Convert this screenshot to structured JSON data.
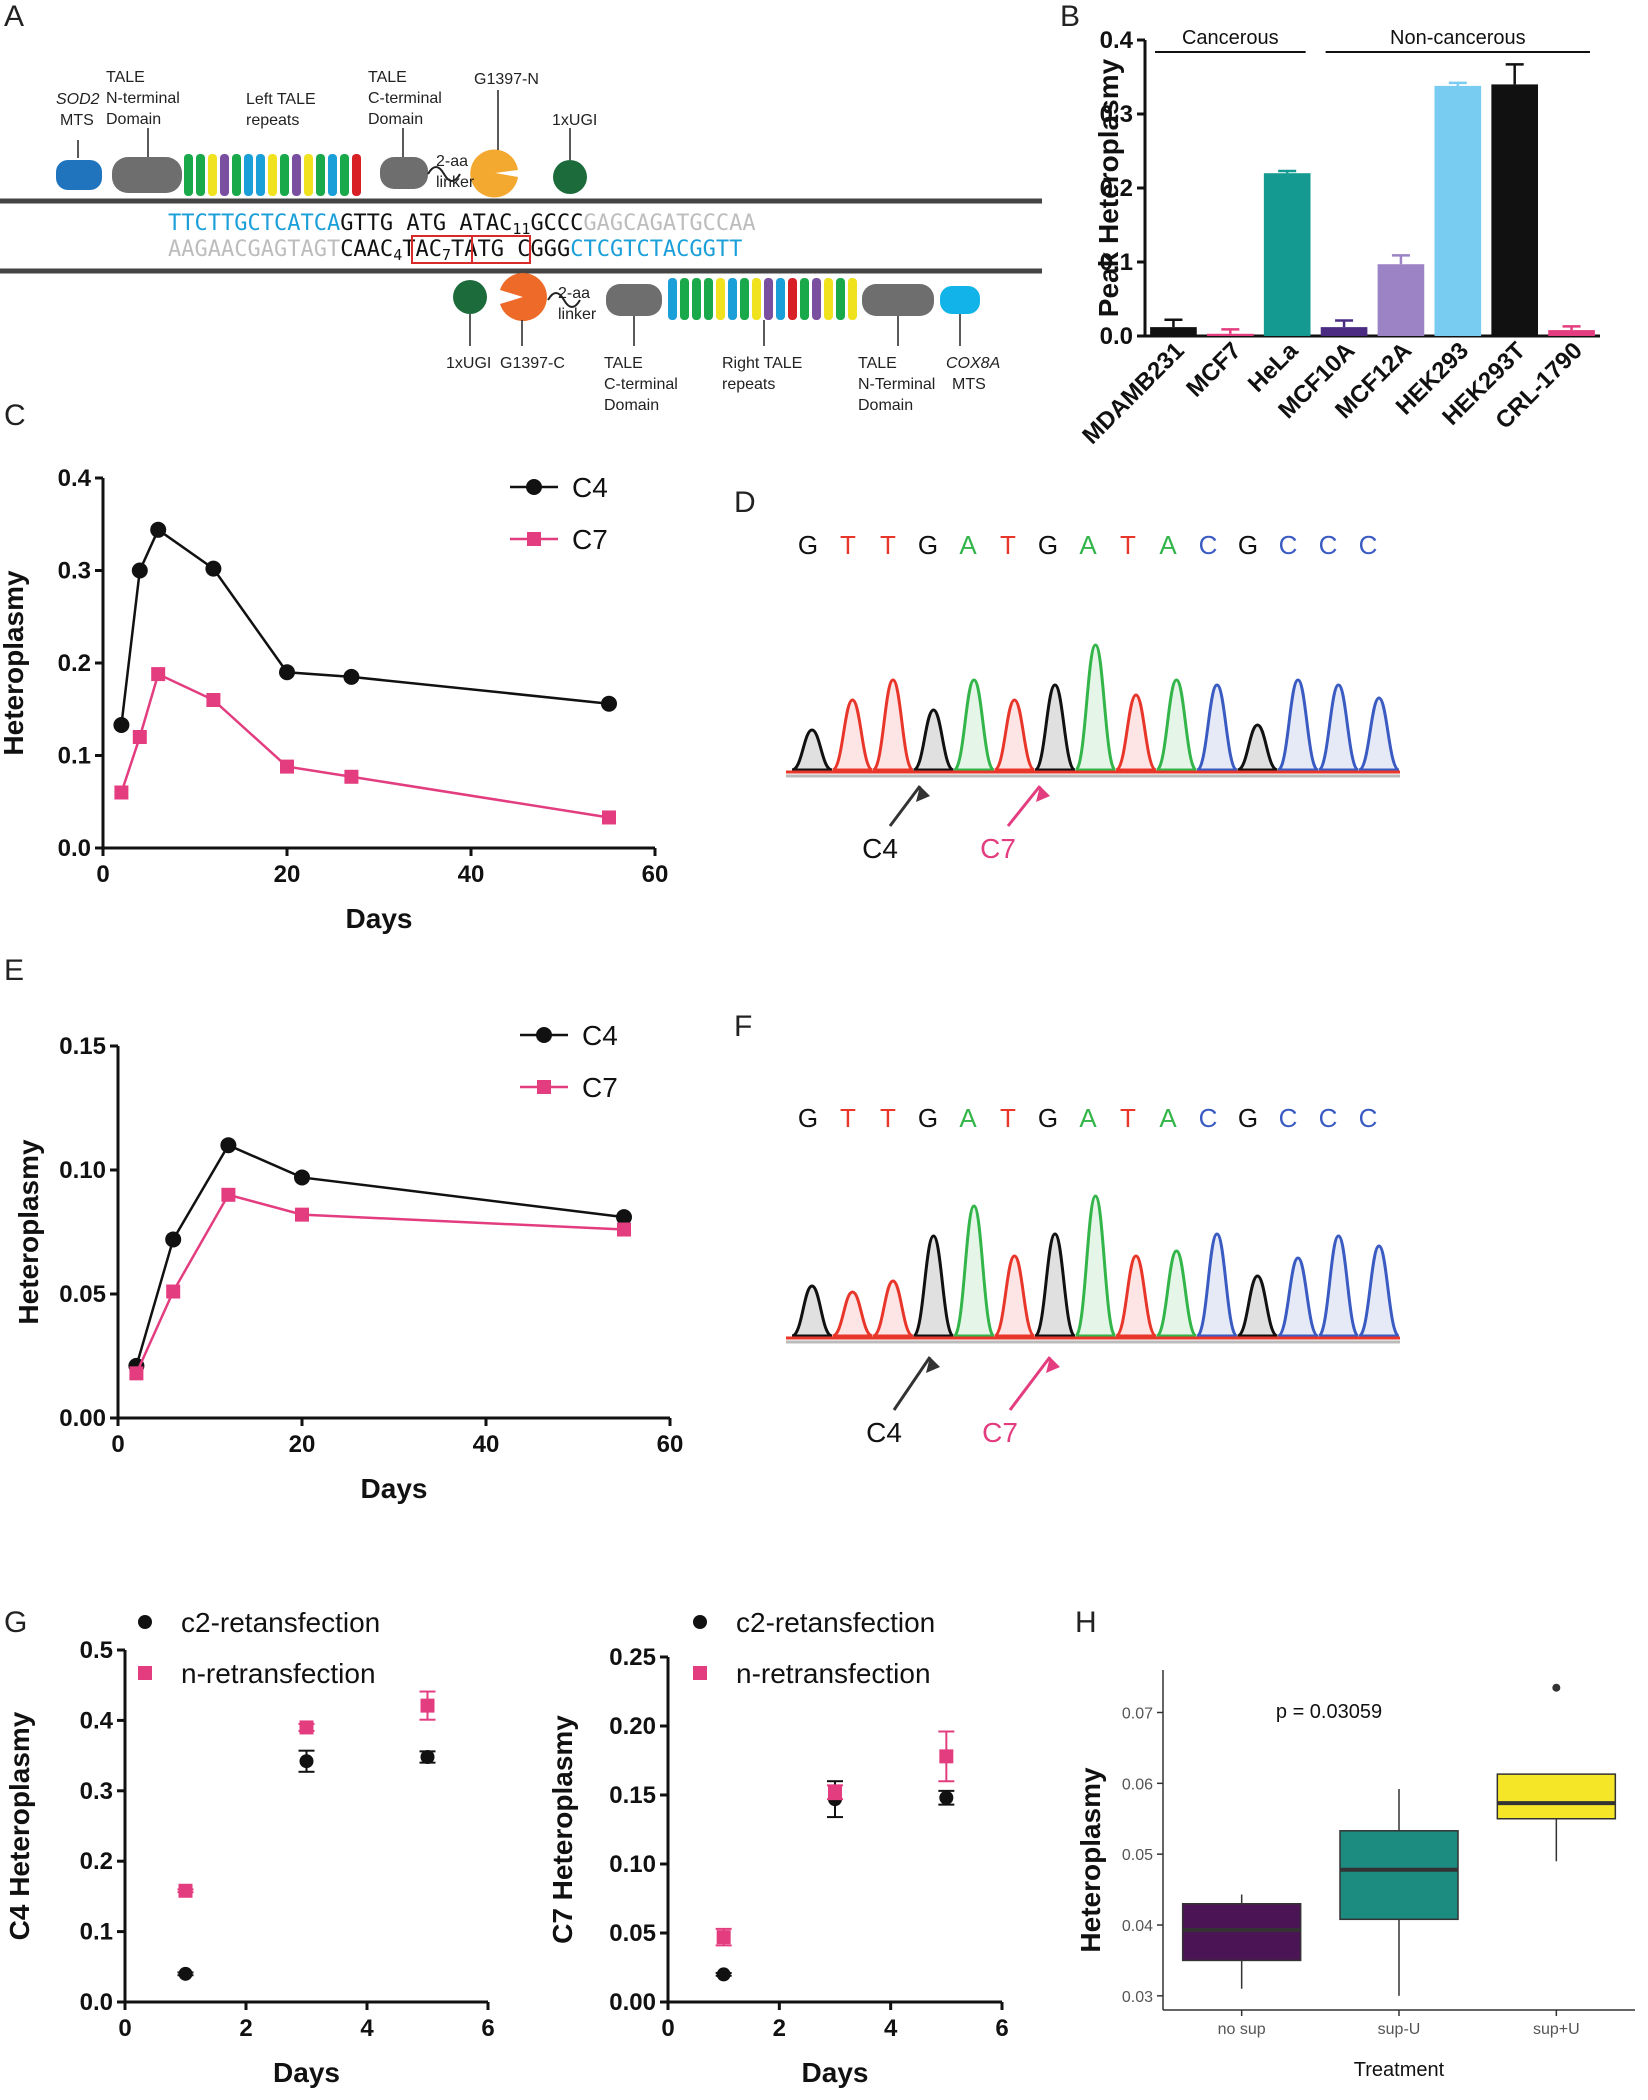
{
  "panels": {
    "A": "A",
    "B": "B",
    "C": "C",
    "D": "D",
    "E": "E",
    "F": "F",
    "G": "G",
    "H": "H"
  },
  "colors": {
    "black": "#111111",
    "pink": "#e33d80",
    "blue": "#1b9fd8",
    "grey": "#bbbbbb",
    "teal": "#149a91",
    "purple": "#4b2c82",
    "lavender": "#9b83c6",
    "sky": "#78ccf2",
    "yellow": "#f4e623",
    "orange": "#f3a82f",
    "red_orange": "#ee6a28",
    "green_dot": "#1b6b3b",
    "red_box": "#d92a2a"
  },
  "panelA": {
    "top_labels": {
      "sod2": "SOD2",
      "mts": "MTS",
      "tale_n": "TALE\nN-terminal\nDomain",
      "left_repeats": "Left TALE\nrepeats",
      "tale_c": "TALE\nC-terminal\nDomain",
      "linker": "2-aa\nlinker",
      "g1397n": "G1397-N",
      "ugi": "1xUGI"
    },
    "bottom_labels": {
      "ugi": "1xUGI",
      "g1397c": "G1397-C",
      "linker": "2-aa\nlinker",
      "tale_c": "TALE\nC-terminal\nDomain",
      "right_repeats": "Right TALE\nrepeats",
      "tale_n": "TALE\nN-Terminal\nDomain",
      "cox8a": "COX8A",
      "mts": "MTS"
    },
    "seq_top": {
      "blue": "TTCTTGCTCATCA",
      "black": "GTTG ATG ATAC",
      "sub": "11",
      "black2": "GCCC",
      "grey": "GAGCAGATGCCAA"
    },
    "seq_bottom": {
      "grey": "AAGAACGAGTAGT",
      "black1": "CA",
      "box1a": "AC",
      "sub4": "4",
      "box1b": "T",
      "box2a": "AC",
      "sub7": "7",
      "box2b": "T",
      "black2": "ATG  CGGG",
      "blue": "CTCGTCTACGGTT"
    }
  },
  "chart_data": [
    {
      "id": "B",
      "type": "bar",
      "title": "",
      "ylabel": "Peak Heteroplasmy",
      "xlabel": "",
      "ylim": [
        0,
        0.4
      ],
      "yticks": [
        "0.0",
        "0.1",
        "0.2",
        "0.3",
        "0.4"
      ],
      "groups": [
        {
          "label": "Cancerous",
          "from": 0,
          "to": 2
        },
        {
          "label": "Non-cancerous",
          "from": 3,
          "to": 7
        }
      ],
      "categories": [
        "MDAMB231",
        "MCF7",
        "HeLa",
        "MCF10A",
        "MCF12A",
        "HEK293",
        "HEK293T",
        "CRL-1790"
      ],
      "values": [
        0.012,
        0.003,
        0.22,
        0.012,
        0.097,
        0.338,
        0.34,
        0.008
      ],
      "errors": [
        0.01,
        0.006,
        0.003,
        0.009,
        0.012,
        0.004,
        0.027,
        0.005
      ],
      "bar_colors": [
        "#111111",
        "#e33d80",
        "#149a91",
        "#4b2c82",
        "#9b83c6",
        "#78ccf2",
        "#111111",
        "#e33d80"
      ]
    },
    {
      "id": "C",
      "type": "line",
      "xlabel": "Days",
      "ylabel": "Heteroplasmy",
      "xlim": [
        0,
        60
      ],
      "ylim": [
        0,
        0.4
      ],
      "xticks": [
        "0",
        "20",
        "40",
        "60"
      ],
      "yticks": [
        "0.0",
        "0.1",
        "0.2",
        "0.3",
        "0.4"
      ],
      "series": [
        {
          "name": "C4",
          "x": [
            2,
            4,
            6,
            12,
            20,
            27,
            55
          ],
          "y": [
            0.133,
            0.3,
            0.344,
            0.302,
            0.19,
            0.185,
            0.156
          ]
        },
        {
          "name": "C7",
          "x": [
            2,
            4,
            6,
            12,
            20,
            27,
            55
          ],
          "y": [
            0.06,
            0.12,
            0.188,
            0.16,
            0.088,
            0.077,
            0.033
          ]
        }
      ]
    },
    {
      "id": "E",
      "type": "line",
      "xlabel": "Days",
      "ylabel": "Heteroplasmy",
      "xlim": [
        0,
        60
      ],
      "ylim": [
        0,
        0.15
      ],
      "xticks": [
        "0",
        "20",
        "40",
        "60"
      ],
      "yticks": [
        "0.00",
        "0.05",
        "0.10",
        "0.15"
      ],
      "series": [
        {
          "name": "C4",
          "x": [
            2,
            6,
            12,
            20,
            55
          ],
          "y": [
            0.021,
            0.072,
            0.11,
            0.097,
            0.081
          ]
        },
        {
          "name": "C7",
          "x": [
            2,
            6,
            12,
            20,
            55
          ],
          "y": [
            0.018,
            0.051,
            0.09,
            0.082,
            0.076
          ]
        }
      ]
    },
    {
      "id": "G1",
      "type": "scatter",
      "xlabel": "Days",
      "ylabel": "C4 Heteroplasmy",
      "xlim": [
        0,
        6
      ],
      "ylim": [
        0,
        0.5
      ],
      "xticks": [
        "0",
        "2",
        "4",
        "6"
      ],
      "yticks": [
        "0.0",
        "0.1",
        "0.2",
        "0.3",
        "0.4",
        "0.5"
      ],
      "series": [
        {
          "name": "c2-retansfection",
          "x": [
            1,
            3,
            5
          ],
          "y": [
            0.04,
            0.342,
            0.348
          ],
          "err": [
            0.002,
            0.015,
            0.008
          ]
        },
        {
          "name": "n-retransfection",
          "x": [
            1,
            3,
            5
          ],
          "y": [
            0.158,
            0.39,
            0.421
          ],
          "err": [
            0.002,
            0.005,
            0.02
          ]
        }
      ]
    },
    {
      "id": "G2",
      "type": "scatter",
      "xlabel": "Days",
      "ylabel": "C7 Heteroplasmy",
      "xlim": [
        0,
        6
      ],
      "ylim": [
        0,
        0.25
      ],
      "xticks": [
        "0",
        "2",
        "4",
        "6"
      ],
      "yticks": [
        "0.00",
        "0.05",
        "0.10",
        "0.15",
        "0.20",
        "0.25"
      ],
      "series": [
        {
          "name": "c2-retansfection",
          "x": [
            1,
            3,
            5
          ],
          "y": [
            0.02,
            0.147,
            0.148
          ],
          "err": [
            0.001,
            0.013,
            0.005
          ]
        },
        {
          "name": "n-retransfection",
          "x": [
            1,
            3,
            5
          ],
          "y": [
            0.047,
            0.152,
            0.178
          ],
          "err": [
            0.006,
            0.005,
            0.018
          ]
        }
      ]
    },
    {
      "id": "H",
      "type": "box",
      "xlabel": "Treatment",
      "ylabel": "Heteroplasmy",
      "ylim": [
        0.028,
        0.076
      ],
      "yticks": [
        "0.03",
        "0.04",
        "0.05",
        "0.06",
        "0.07"
      ],
      "annotation": "p = 0.03059",
      "categories": [
        "no sup",
        "sup-U",
        "sup+U"
      ],
      "boxes": [
        {
          "min": 0.031,
          "q1": 0.035,
          "median": 0.0393,
          "q3": 0.043,
          "max": 0.0443,
          "color": "#4b1454",
          "outliers": []
        },
        {
          "min": 0.03,
          "q1": 0.0408,
          "median": 0.0478,
          "q3": 0.0533,
          "max": 0.0592,
          "color": "#1c8b80",
          "outliers": []
        },
        {
          "min": 0.049,
          "q1": 0.055,
          "median": 0.0572,
          "q3": 0.0613,
          "max": 0.0613,
          "color": "#f6e628",
          "outliers": [
            0.0735
          ]
        }
      ]
    }
  ],
  "chromatograms": {
    "D": {
      "bases": [
        "G",
        "T",
        "T",
        "G",
        "A",
        "T",
        "G",
        "A",
        "T",
        "A",
        "C",
        "G",
        "C",
        "C",
        "C"
      ],
      "labels": {
        "c4": "C4",
        "c7": "C7"
      }
    },
    "F": {
      "bases": [
        "G",
        "T",
        "T",
        "G",
        "A",
        "T",
        "G",
        "A",
        "T",
        "A",
        "C",
        "G",
        "C",
        "C",
        "C"
      ],
      "labels": {
        "c4": "C4",
        "c7": "C7"
      }
    }
  }
}
